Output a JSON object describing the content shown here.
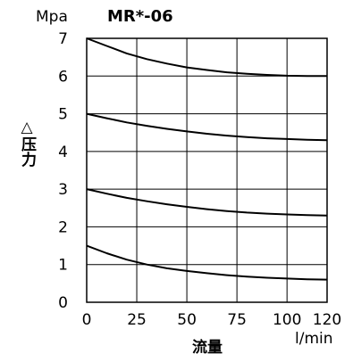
{
  "chart_data": {
    "type": "line",
    "title": "MR*-06",
    "y_unit": "Mpa",
    "ylabel": "△压力",
    "xlabel": "流量",
    "x_unit": "l/min",
    "xlim": [
      0,
      120
    ],
    "ylim": [
      0,
      7
    ],
    "x_ticks": [
      "0",
      "25",
      "50",
      "75",
      "100",
      "120"
    ],
    "y_ticks": [
      "0",
      "1",
      "2",
      "3",
      "4",
      "5",
      "6",
      "7"
    ],
    "grid": true,
    "series": [
      {
        "x": [
          0,
          10,
          20,
          30,
          40,
          50,
          60,
          70,
          80,
          90,
          100,
          110,
          120
        ],
        "values": [
          7.0,
          6.8,
          6.6,
          6.45,
          6.33,
          6.23,
          6.16,
          6.1,
          6.06,
          6.03,
          6.01,
          6.0,
          6.0
        ]
      },
      {
        "x": [
          0,
          10,
          20,
          30,
          40,
          50,
          60,
          70,
          80,
          90,
          100,
          110,
          120
        ],
        "values": [
          5.0,
          4.88,
          4.77,
          4.68,
          4.6,
          4.53,
          4.47,
          4.42,
          4.38,
          4.35,
          4.33,
          4.31,
          4.3
        ]
      },
      {
        "x": [
          0,
          10,
          20,
          30,
          40,
          50,
          60,
          70,
          80,
          90,
          100,
          110,
          120
        ],
        "values": [
          3.0,
          2.88,
          2.77,
          2.68,
          2.6,
          2.53,
          2.47,
          2.42,
          2.38,
          2.35,
          2.33,
          2.31,
          2.3
        ]
      },
      {
        "x": [
          0,
          10,
          20,
          30,
          40,
          50,
          60,
          70,
          80,
          90,
          100,
          110,
          120
        ],
        "values": [
          1.5,
          1.3,
          1.13,
          1.0,
          0.9,
          0.83,
          0.77,
          0.72,
          0.68,
          0.65,
          0.63,
          0.61,
          0.6
        ]
      }
    ]
  }
}
